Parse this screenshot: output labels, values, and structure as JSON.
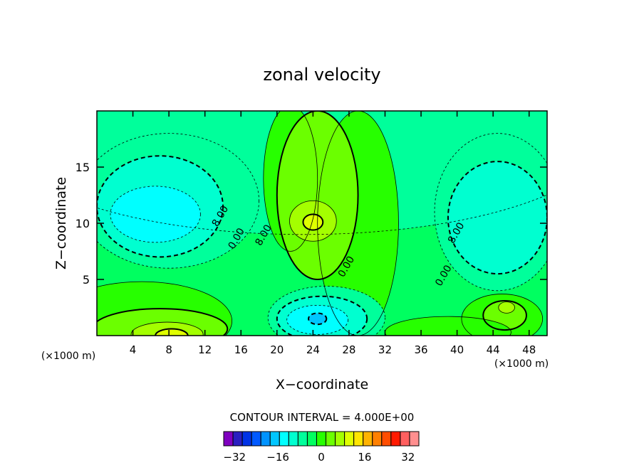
{
  "chart_data": {
    "type": "heatmap",
    "title": "zonal velocity",
    "xlabel": "X−coordinate",
    "ylabel": "Z−coordinate",
    "x_unit_label": "(×1000 m)",
    "z_unit_label": "(×1000 m)",
    "xlim": [
      0,
      50
    ],
    "ylim": [
      0,
      20
    ],
    "x_ticks": [
      4,
      8,
      12,
      16,
      20,
      24,
      28,
      32,
      36,
      40,
      44,
      48
    ],
    "y_ticks": [
      5,
      10,
      15
    ],
    "x_tick_labels": [
      "4",
      "8",
      "12",
      "16",
      "20",
      "24",
      "28",
      "32",
      "36",
      "40",
      "44",
      "48"
    ],
    "y_tick_labels": [
      "5",
      "10",
      "15"
    ],
    "contour_interval_text": "CONTOUR INTERVAL = 4.000E+00",
    "contour_labels": [
      {
        "text": "8.00",
        "x": 14.0,
        "z": 10.5
      },
      {
        "text": "8.00",
        "x": 18.8,
        "z": 8.8
      },
      {
        "text": "0.00",
        "x": 15.8,
        "z": 8.5
      },
      {
        "text": "0.00",
        "x": 28.0,
        "z": 6.0
      },
      {
        "text": "0.00",
        "x": 38.8,
        "z": 5.2
      },
      {
        "text": "8.00",
        "x": 40.2,
        "z": 9.0
      }
    ],
    "colorbar": {
      "min": -36,
      "max": 36,
      "step": 4,
      "tick_values": [
        -32,
        -16,
        0,
        16,
        32
      ],
      "tick_labels": [
        "−32",
        "−16",
        "0",
        "16",
        "32"
      ],
      "colors": [
        "#7f00bf",
        "#2a1fc0",
        "#0033e6",
        "#0059ff",
        "#0093ff",
        "#00c6ff",
        "#00ffff",
        "#00ffd0",
        "#00ff9b",
        "#00ff60",
        "#27ff00",
        "#6bff00",
        "#a4ff00",
        "#e0ff00",
        "#ffe600",
        "#ffb300",
        "#ff8000",
        "#ff4d00",
        "#ff1a00",
        "#ff5f5f",
        "#ff8f8f"
      ]
    },
    "features": [
      {
        "kind": "background",
        "value": 0
      },
      {
        "kind": "region",
        "value": -4,
        "x": 23,
        "z": 18,
        "rx": 34,
        "rz": 9
      },
      {
        "kind": "region",
        "value": -4,
        "x": 8,
        "z": 12,
        "rx": 10,
        "rz": 6
      },
      {
        "kind": "region",
        "value": -8,
        "x": 7,
        "z": 11.5,
        "rx": 7,
        "rz": 4.5
      },
      {
        "kind": "region",
        "value": -12,
        "x": 6.5,
        "z": 10.8,
        "rx": 5,
        "rz": 2.5
      },
      {
        "kind": "region",
        "value": -4,
        "x": 44.5,
        "z": 11,
        "rx": 7,
        "rz": 7
      },
      {
        "kind": "region",
        "value": -8,
        "x": 44.5,
        "z": 10.5,
        "rx": 5.5,
        "rz": 5
      },
      {
        "kind": "region",
        "value": 4,
        "x": 21.5,
        "z": 14,
        "rx": 3,
        "rz": 6.5
      },
      {
        "kind": "region",
        "value": 4,
        "x": 29,
        "z": 10,
        "rx": 4.5,
        "rz": 10
      },
      {
        "kind": "region",
        "value": 8,
        "x": 24.5,
        "z": 12.5,
        "rx": 4.5,
        "rz": 7.5
      },
      {
        "kind": "region",
        "value": 12,
        "x": 24,
        "z": 10.2,
        "rx": 2.6,
        "rz": 1.8
      },
      {
        "kind": "region",
        "value": 16,
        "x": 24,
        "z": 10.1,
        "rx": 1.1,
        "rz": 0.7
      },
      {
        "kind": "region",
        "value": -4,
        "x": 25.5,
        "z": 1.6,
        "rx": 6.5,
        "rz": 2.8
      },
      {
        "kind": "region",
        "value": -8,
        "x": 25,
        "z": 1.5,
        "rx": 5,
        "rz": 2
      },
      {
        "kind": "region",
        "value": -12,
        "x": 24.5,
        "z": 1.4,
        "rx": 3.4,
        "rz": 1.3
      },
      {
        "kind": "region",
        "value": -16,
        "x": 24.5,
        "z": 1.5,
        "rx": 1,
        "rz": 0.5
      },
      {
        "kind": "region",
        "value": 4,
        "x": 5,
        "z": 1.3,
        "rx": 10,
        "rz": 3.5
      },
      {
        "kind": "region",
        "value": 8,
        "x": 7,
        "z": 0.6,
        "rx": 7.5,
        "rz": 1.8
      },
      {
        "kind": "region",
        "value": 12,
        "x": 7.8,
        "z": 0.1,
        "rx": 4,
        "rz": 1.1
      },
      {
        "kind": "region",
        "value": 16,
        "x": 8.3,
        "z": 0,
        "rx": 1.8,
        "rz": 0.6
      },
      {
        "kind": "region",
        "value": 4,
        "x": 45,
        "z": 1.5,
        "rx": 4.5,
        "rz": 2.2
      },
      {
        "kind": "region",
        "value": 8,
        "x": 45.3,
        "z": 1.8,
        "rx": 2.4,
        "rz": 1.3
      },
      {
        "kind": "region",
        "value": 12,
        "x": 45.5,
        "z": 2.5,
        "rx": 0.9,
        "rz": 0.5
      },
      {
        "kind": "region",
        "value": 4,
        "x": 39,
        "z": 0.3,
        "rx": 7,
        "rz": 1.4
      }
    ]
  }
}
